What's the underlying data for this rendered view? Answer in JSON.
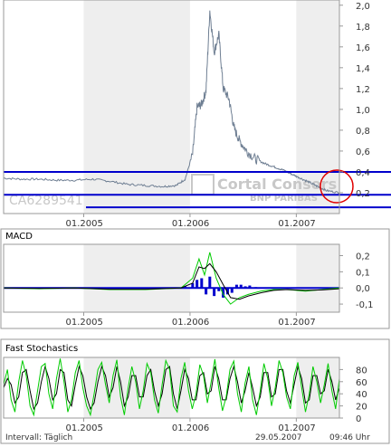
{
  "colors": {
    "panel_border": "#9a9a9a",
    "shade": "#eeeeee",
    "price_line": "#6f7f93",
    "support_line": "#0000cc",
    "macd_line": "#00cc00",
    "macd_hist": "#0000cc",
    "stoch_fast": "#00cc00",
    "stoch_slow": "#000000",
    "marker": "#e00000",
    "watermark": "#c8c8c8"
  },
  "watermark": {
    "symbol": "CA6289541",
    "brand": "Cortal Consors",
    "sub": "BNP PARIBAS"
  },
  "footer": {
    "interval": "Intervall: Täglich",
    "date": "29.05.2007",
    "time": "09:46 Uhr"
  },
  "chart_data": [
    {
      "type": "line",
      "title": "",
      "x_range": [
        "2004-04-01",
        "2007-05-29"
      ],
      "x_ticks": [
        "01.2005",
        "01.2006",
        "01.2007"
      ],
      "ylim": [
        0,
        2.05
      ],
      "y_ticks": [
        "0,2",
        "0,4",
        "0,6",
        "0,8",
        "1,0",
        "1,2",
        "1,4",
        "1,6",
        "1,8",
        "2,0"
      ],
      "y_tick_values": [
        0.2,
        0.4,
        0.6,
        0.8,
        1.0,
        1.2,
        1.4,
        1.6,
        1.8,
        2.0
      ],
      "shaded_years": [
        "2005",
        "2007"
      ],
      "grid": false,
      "series": [
        {
          "x": [
            "2004-04-01",
            "2004-06-01",
            "2004-08-01",
            "2004-10-01",
            "2004-12-01",
            "2005-02-01",
            "2005-04-01",
            "2005-06-01",
            "2005-08-01",
            "2005-10-01",
            "2005-11-15",
            "2005-12-15",
            "2006-01-10",
            "2006-01-25",
            "2006-02-10",
            "2006-02-25",
            "2006-03-10",
            "2006-03-25",
            "2006-04-10",
            "2006-04-25",
            "2006-05-15",
            "2006-06-01",
            "2006-06-20",
            "2006-07-15",
            "2006-08-15",
            "2006-09-15",
            "2006-10-15",
            "2006-11-15",
            "2006-12-15",
            "2007-01-15",
            "2007-02-15",
            "2007-03-15",
            "2007-04-15",
            "2007-05-29"
          ],
          "values": [
            0.34,
            0.33,
            0.33,
            0.32,
            0.32,
            0.33,
            0.31,
            0.28,
            0.27,
            0.26,
            0.27,
            0.33,
            0.57,
            1.02,
            1.05,
            1.18,
            1.95,
            1.55,
            1.72,
            1.2,
            1.1,
            0.82,
            0.7,
            0.6,
            0.52,
            0.48,
            0.45,
            0.42,
            0.38,
            0.34,
            0.3,
            0.26,
            0.22,
            0.2
          ]
        }
      ],
      "horizontal_lines": [
        0.4,
        0.18,
        0.06
      ]
    },
    {
      "type": "line",
      "title": "MACD",
      "ylim": [
        -0.15,
        0.27
      ],
      "x_ticks": [
        "01.2005",
        "01.2006",
        "01.2007"
      ],
      "y_ticks": [
        "0,2",
        "0,1",
        "0,0",
        "-0,1"
      ],
      "y_tick_values": [
        0.2,
        0.1,
        0.0,
        -0.1
      ],
      "series": [
        {
          "x": [
            "2004-04-01",
            "2004-08-01",
            "2004-12-01",
            "2005-04-01",
            "2005-08-01",
            "2005-12-01",
            "2006-01-10",
            "2006-02-01",
            "2006-02-20",
            "2006-03-10",
            "2006-04-01",
            "2006-04-25",
            "2006-05-20",
            "2006-06-20",
            "2006-07-20",
            "2006-09-01",
            "2006-10-15",
            "2006-12-01",
            "2007-02-01",
            "2007-04-01",
            "2007-05-29"
          ],
          "values": [
            0.0,
            -0.005,
            0.0,
            -0.01,
            -0.01,
            0.0,
            0.06,
            0.18,
            0.08,
            0.22,
            0.06,
            -0.04,
            -0.1,
            -0.06,
            -0.04,
            -0.02,
            -0.01,
            -0.01,
            -0.02,
            -0.01,
            0.0
          ]
        },
        {
          "x": [
            "2004-04-01",
            "2004-08-01",
            "2004-12-01",
            "2005-04-01",
            "2005-08-01",
            "2005-12-01",
            "2006-01-10",
            "2006-02-01",
            "2006-02-20",
            "2006-03-10",
            "2006-04-01",
            "2006-04-25",
            "2006-05-20",
            "2006-06-20",
            "2006-07-20",
            "2006-09-01",
            "2006-10-15",
            "2006-12-01",
            "2007-02-01",
            "2007-04-01",
            "2007-05-29"
          ],
          "values": [
            0.0,
            -0.003,
            0.0,
            -0.008,
            -0.008,
            0.0,
            0.03,
            0.13,
            0.12,
            0.15,
            0.1,
            0.02,
            -0.06,
            -0.07,
            -0.05,
            -0.03,
            -0.015,
            -0.01,
            -0.015,
            -0.012,
            -0.005
          ]
        }
      ],
      "histogram": {
        "x": [
          "2005-12-15",
          "2006-01-10",
          "2006-01-25",
          "2006-02-10",
          "2006-02-25",
          "2006-03-10",
          "2006-03-25",
          "2006-04-10",
          "2006-04-25",
          "2006-05-10",
          "2006-05-25",
          "2006-06-10",
          "2006-06-25",
          "2006-07-10",
          "2006-07-25",
          "2006-08-15"
        ],
        "values": [
          0.01,
          0.03,
          0.05,
          0.06,
          -0.04,
          0.07,
          -0.05,
          -0.02,
          -0.06,
          -0.04,
          -0.03,
          0.02,
          0.02,
          0.01,
          0.015,
          0.005
        ]
      }
    },
    {
      "type": "line",
      "title": "Fast Stochastics",
      "ylim": [
        0,
        100
      ],
      "x_ticks": [
        "01.2005",
        "01.2006",
        "01.2007"
      ],
      "y_ticks": [
        "80",
        "60",
        "40",
        "20",
        "0"
      ],
      "y_tick_values": [
        80,
        60,
        40,
        20,
        0
      ],
      "series": [
        {
          "x_range": [
            "2004-04-01",
            "2007-05-29"
          ],
          "values": [
            55,
            80,
            30,
            10,
            60,
            95,
            70,
            20,
            5,
            45,
            85,
            90,
            40,
            15,
            65,
            98,
            60,
            10,
            30,
            75,
            95,
            50,
            20,
            5,
            40,
            80,
            92,
            55,
            25,
            70,
            96,
            35,
            5,
            50,
            85,
            60,
            15,
            45,
            90,
            75,
            30,
            8,
            55,
            95,
            80,
            20,
            10,
            65,
            92,
            45,
            15,
            40,
            88,
            70,
            25,
            60,
            97,
            50,
            12,
            35,
            80,
            94,
            40,
            10,
            58,
            85,
            30,
            5,
            45,
            90,
            65,
            20,
            50,
            95,
            75,
            35,
            15,
            70,
            92,
            50,
            10,
            40,
            85,
            60,
            25,
            55,
            90,
            45,
            15,
            65
          ]
        },
        {
          "x_range": [
            "2004-04-01",
            "2007-05-29"
          ],
          "values": [
            50,
            65,
            55,
            25,
            35,
            75,
            80,
            45,
            15,
            25,
            60,
            85,
            65,
            30,
            40,
            80,
            75,
            30,
            20,
            55,
            85,
            70,
            35,
            15,
            25,
            60,
            85,
            70,
            35,
            50,
            85,
            60,
            20,
            35,
            70,
            70,
            35,
            35,
            70,
            80,
            45,
            20,
            40,
            80,
            85,
            40,
            15,
            45,
            80,
            65,
            30,
            30,
            70,
            75,
            40,
            45,
            85,
            65,
            30,
            30,
            65,
            85,
            60,
            25,
            45,
            75,
            50,
            20,
            35,
            75,
            75,
            35,
            40,
            80,
            80,
            45,
            25,
            55,
            85,
            65,
            25,
            30,
            70,
            70,
            40,
            45,
            80,
            60,
            30,
            50
          ]
        }
      ]
    }
  ]
}
